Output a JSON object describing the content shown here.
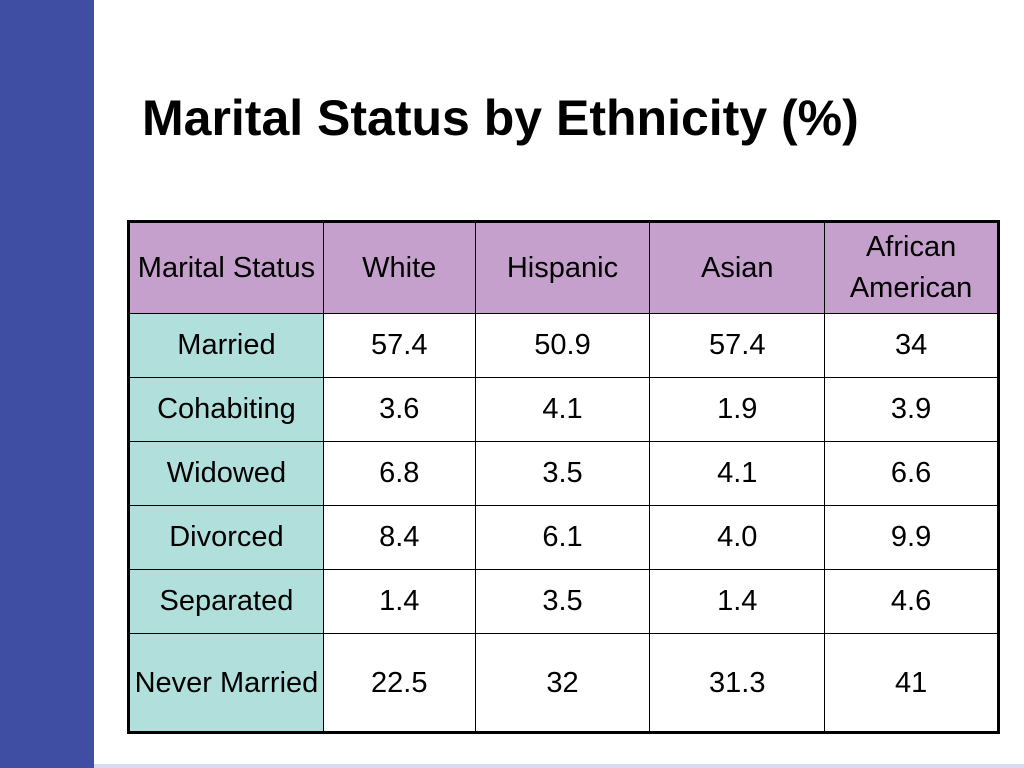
{
  "slide": {
    "title": "Marital Status by Ethnicity (%)",
    "accent_color": "#3f4ea2",
    "header_color": "#c5a0cc",
    "row_label_color": "#b1e0dc"
  },
  "chart_data": {
    "type": "table",
    "title": "Marital Status by Ethnicity (%)",
    "columns": [
      "Marital Status",
      "White",
      "Hispanic",
      "Asian",
      "African American"
    ],
    "rows": [
      {
        "label": "Married",
        "values": [
          "57.4",
          "50.9",
          "57.4",
          "34"
        ]
      },
      {
        "label": "Cohabiting",
        "values": [
          "3.6",
          "4.1",
          "1.9",
          "3.9"
        ]
      },
      {
        "label": "Widowed",
        "values": [
          "6.8",
          "3.5",
          "4.1",
          "6.6"
        ]
      },
      {
        "label": "Divorced",
        "values": [
          "8.4",
          "6.1",
          "4.0",
          "9.9"
        ]
      },
      {
        "label": "Separated",
        "values": [
          "1.4",
          "3.5",
          "1.4",
          "4.6"
        ]
      },
      {
        "label": "Never Married",
        "values": [
          "22.5",
          "32",
          "31.3",
          "41"
        ]
      }
    ]
  }
}
